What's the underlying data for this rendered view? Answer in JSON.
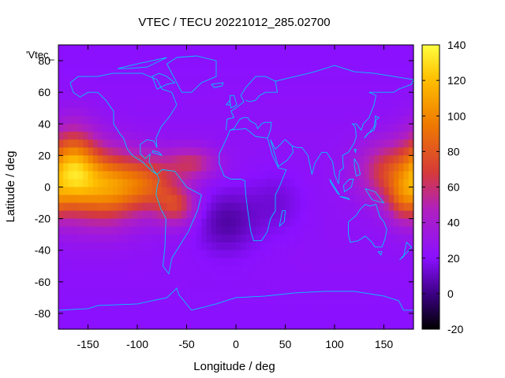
{
  "title": "VTEC / TECU 20221012_285.02700",
  "xlabel": "Longitude / deg",
  "ylabel": "Latitude / deg",
  "overlay_label": "'Vtec_",
  "x_ticks": [
    "-150",
    "-100",
    "-50",
    "0",
    "50",
    "100",
    "150"
  ],
  "y_ticks": [
    "80",
    "60",
    "40",
    "20",
    "0",
    "-20",
    "-40",
    "-60",
    "-80"
  ],
  "colorbar_ticks": [
    "140",
    "120",
    "100",
    "80",
    "60",
    "40",
    "20",
    "0",
    "-20"
  ],
  "colors": {
    "coastline": "#00c8ff",
    "background_field": "#8a1aff",
    "palette": [
      "#000000",
      "#3a0080",
      "#8a10ff",
      "#b020c0",
      "#d63a3a",
      "#ef7a00",
      "#ffc000",
      "#ffff40"
    ]
  },
  "chart_data": {
    "type": "heatmap",
    "title": "VTEC / TECU 20221012_285.02700",
    "xlabel": "Longitude / deg",
    "ylabel": "Latitude / deg",
    "xlim": [
      -180,
      180
    ],
    "ylim": [
      -90,
      90
    ],
    "colorbar_range": [
      -20,
      140
    ],
    "colorbar_label": "",
    "background_value": 20,
    "features": [
      {
        "lon": -165,
        "lat": 10,
        "lon_half_width": 25,
        "lat_half_width": 25,
        "value": 105
      },
      {
        "lon": -130,
        "lat": 0,
        "lon_half_width": 30,
        "lat_half_width": 22,
        "value": 90
      },
      {
        "lon": -90,
        "lat": 2,
        "lon_half_width": 30,
        "lat_half_width": 18,
        "value": 72
      },
      {
        "lon": -60,
        "lat": -12,
        "lon_half_width": 20,
        "lat_half_width": 12,
        "value": 60
      },
      {
        "lon": -45,
        "lat": 15,
        "lon_half_width": 25,
        "lat_half_width": 10,
        "value": 55
      },
      {
        "lon": 155,
        "lat": 10,
        "lon_half_width": 30,
        "lat_half_width": 18,
        "value": 65
      },
      {
        "lon": 170,
        "lat": -8,
        "lon_half_width": 18,
        "lat_half_width": 15,
        "value": 60
      },
      {
        "lon": -10,
        "lat": -22,
        "lon_half_width": 30,
        "lat_half_width": 20,
        "value": 2
      },
      {
        "lon": 40,
        "lat": -10,
        "lon_half_width": 30,
        "lat_half_width": 20,
        "value": 10
      }
    ]
  }
}
